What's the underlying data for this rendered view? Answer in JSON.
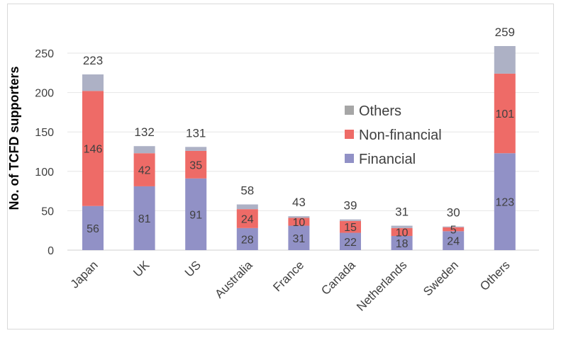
{
  "chart_data": {
    "type": "bar",
    "stacked": true,
    "title": "",
    "xlabel": "",
    "ylabel": "No. of TCFD supporters",
    "ylim": [
      0,
      260
    ],
    "yticks": [
      0,
      50,
      100,
      150,
      200,
      250
    ],
    "categories": [
      "Japan",
      "UK",
      "US",
      "Australia",
      "France",
      "Canada",
      "Netherlands",
      "Sweden",
      "Others"
    ],
    "series": [
      {
        "name": "Financial",
        "color": "#9191c6",
        "values": [
          56,
          81,
          91,
          28,
          31,
          22,
          18,
          24,
          123
        ]
      },
      {
        "name": "Non-financial",
        "color": "#ee6b67",
        "values": [
          146,
          42,
          35,
          24,
          10,
          15,
          10,
          5,
          101
        ]
      },
      {
        "name": "Others",
        "color": "#adb1c5",
        "values": [
          21,
          9,
          5,
          6,
          2,
          2,
          3,
          1,
          35
        ]
      }
    ],
    "totals": [
      223,
      132,
      131,
      58,
      43,
      39,
      31,
      30,
      259
    ],
    "segment_labels": {
      "Financial": [
        "56",
        "81",
        "91",
        "28",
        "31",
        "22",
        "18",
        "24",
        "123"
      ],
      "Non-financial": [
        "146",
        "42",
        "35",
        "24",
        "10",
        "15",
        "10",
        "5",
        "101"
      ]
    },
    "legend": [
      "Others",
      "Non-financial",
      "Financial"
    ],
    "legend_position": "center-right",
    "grid": true
  }
}
